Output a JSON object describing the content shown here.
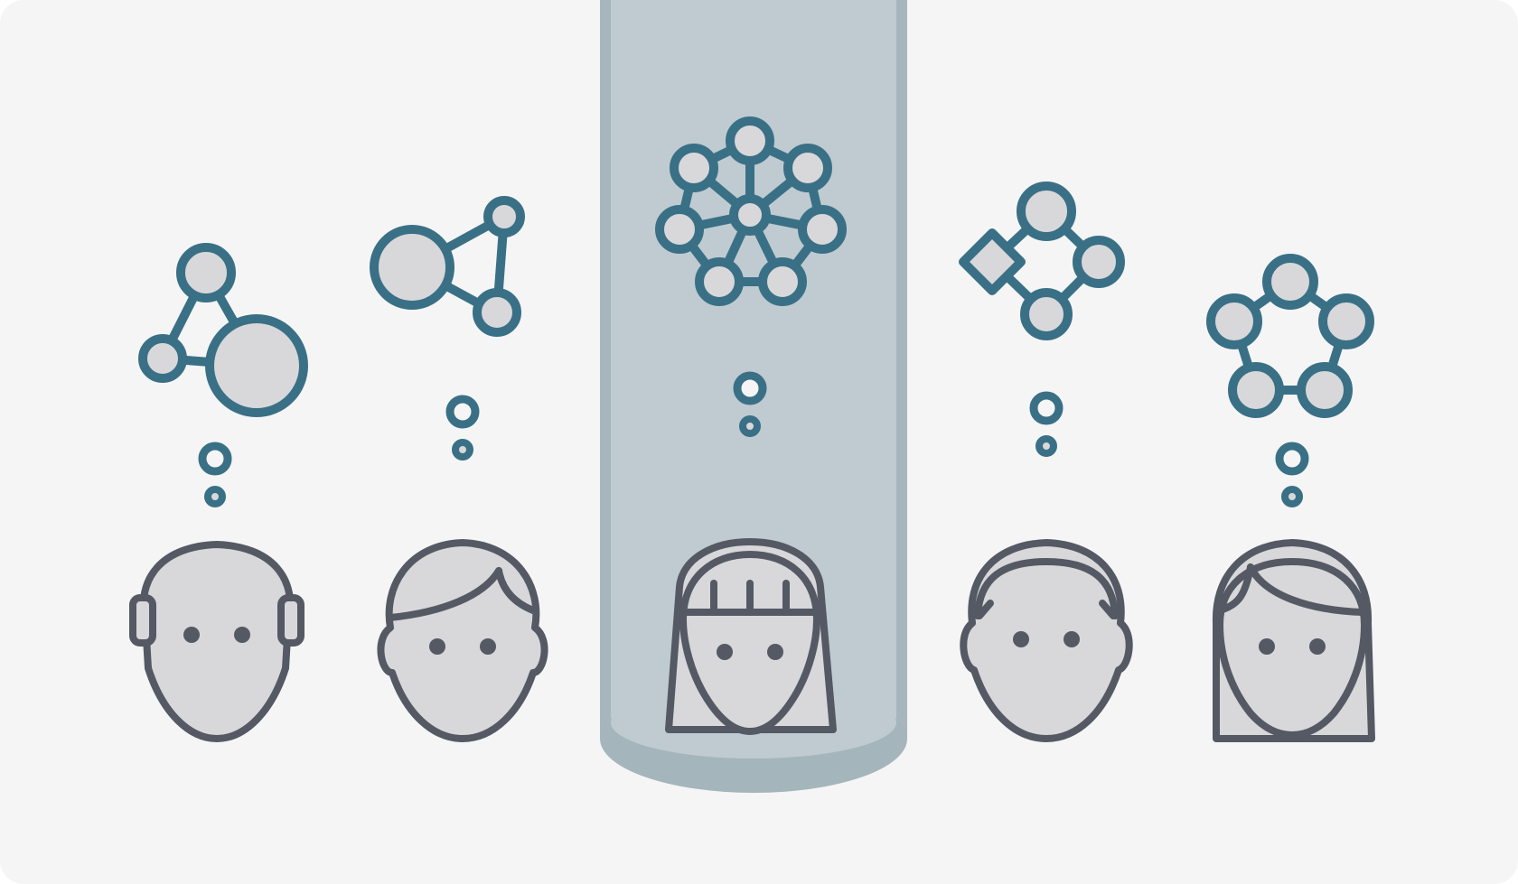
{
  "scene": {
    "people": [
      {
        "name": "person-1",
        "hair": "bald",
        "network": "triangle",
        "highlighted": false
      },
      {
        "name": "person-2",
        "hair": "side-part",
        "network": "triangle",
        "highlighted": false
      },
      {
        "name": "person-3",
        "hair": "bangs-long",
        "network": "hub-and-spoke",
        "highlighted": true
      },
      {
        "name": "person-4",
        "hair": "headband",
        "network": "diamond-flow",
        "highlighted": false
      },
      {
        "name": "person-5",
        "hair": "long-side-part",
        "network": "pentagon",
        "highlighted": false
      }
    ]
  },
  "colors": {
    "card_background": "#f5f5f6",
    "network_stroke": "#3a7086",
    "node_fill": "#d8d8da",
    "face_fill": "#d8d8da",
    "face_stroke": "#545964",
    "beam_fill": "#bfcbd1",
    "beam_edge": "#a7b6bd",
    "beam_floor": "#a5b5bc"
  },
  "icons": {
    "thought_bubble": "thought-bubble-icon",
    "network": "network-graph-icon",
    "person": "person-head-icon",
    "spotlight": "spotlight-beam"
  }
}
